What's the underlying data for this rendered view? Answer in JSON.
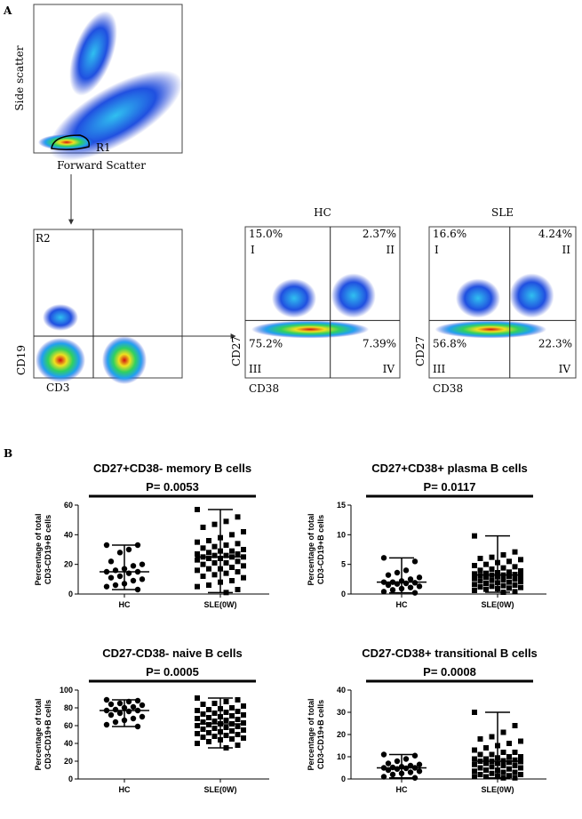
{
  "figure": {
    "panel_a": "A",
    "panel_b": "B",
    "scatter_plot": {
      "y_label": "Side scatter",
      "x_label": "Forward Scatter",
      "gate": "R1"
    },
    "gate_plot": {
      "gate": "R2",
      "y_label": "CD19",
      "x_label": "CD3"
    },
    "quadrant_plots": [
      {
        "title": "HC",
        "quadrants": [
          "15.0%",
          "2.37%",
          "75.2%",
          "7.39%"
        ],
        "labels": [
          "I",
          "II",
          "III",
          "IV"
        ],
        "y_label": "CD27",
        "x_label": "CD38"
      },
      {
        "title": "SLE",
        "quadrants": [
          "16.6%",
          "4.24%",
          "56.8%",
          "22.3%"
        ],
        "labels": [
          "I",
          "II",
          "III",
          "IV"
        ],
        "y_label": "CD27",
        "x_label": "CD38"
      }
    ]
  },
  "chart_data": [
    {
      "type": "dot",
      "title": "CD27+CD38- memory B cells",
      "annotation": "P= 0.0053",
      "ylabel": [
        "Percentage of total",
        "CD3-CD19+B cells"
      ],
      "categories": [
        "HC",
        "SLE(0W)"
      ],
      "ylim": [
        0,
        60
      ],
      "yticks": [
        0,
        20,
        40,
        60
      ],
      "groups": [
        {
          "marker": "circle",
          "median": 15,
          "values": [
            33,
            33,
            30,
            28,
            22,
            20,
            19,
            17,
            16,
            15,
            15,
            14,
            12,
            11,
            10,
            9,
            7,
            6,
            5,
            3
          ]
        },
        {
          "marker": "square",
          "median": 25,
          "values": [
            57,
            52,
            49,
            47,
            45,
            42,
            40,
            38,
            36,
            35,
            34,
            33,
            32,
            31,
            30,
            29,
            29,
            28,
            27,
            27,
            26,
            26,
            25,
            25,
            25,
            24,
            24,
            23,
            22,
            21,
            21,
            20,
            19,
            18,
            17,
            17,
            16,
            15,
            14,
            13,
            12,
            11,
            9,
            8,
            6,
            5,
            3,
            1
          ]
        }
      ]
    },
    {
      "type": "dot",
      "title": "CD27+CD38+ plasma B cells",
      "annotation": "P= 0.0117",
      "ylabel": [
        "Percentage of total",
        "CD3-CD19+B cells"
      ],
      "categories": [
        "HC",
        "SLE(0W)"
      ],
      "ylim": [
        0,
        15
      ],
      "yticks": [
        0,
        5,
        10,
        15
      ],
      "groups": [
        {
          "marker": "circle",
          "median": 2,
          "values": [
            6.1,
            5.5,
            4,
            3.6,
            3.2,
            2.8,
            2.5,
            2.2,
            2,
            2,
            1.9,
            1.8,
            1.7,
            1.5,
            1.3,
            1.1,
            0.9,
            0.7,
            0.4,
            0.2
          ]
        },
        {
          "marker": "square",
          "median": 3.2,
          "values": [
            9.8,
            7.1,
            6.6,
            6.2,
            6,
            5.8,
            5.5,
            5.3,
            5,
            4.8,
            4.6,
            4.4,
            4.2,
            4,
            3.9,
            3.7,
            3.6,
            3.5,
            3.4,
            3.3,
            3.2,
            3.2,
            3.1,
            3,
            3,
            2.9,
            2.8,
            2.6,
            2.5,
            2.4,
            2.3,
            2.2,
            2.1,
            2,
            1.9,
            1.8,
            1.6,
            1.5,
            1.4,
            1.3,
            1.2,
            1.1,
            1,
            0.9,
            0.8,
            0.6,
            0.4,
            0.3
          ]
        }
      ]
    },
    {
      "type": "dot",
      "title": "CD27-CD38- naive B cells",
      "annotation": "P= 0.0005",
      "ylabel": [
        "Percentage of total",
        "CD3-CD19+B cells"
      ],
      "categories": [
        "HC",
        "SLE(0W)"
      ],
      "ylim": [
        0,
        100
      ],
      "yticks": [
        0,
        20,
        40,
        60,
        80,
        100
      ],
      "groups": [
        {
          "marker": "circle",
          "median": 77,
          "values": [
            89,
            88,
            87,
            85,
            84,
            83,
            81,
            80,
            78,
            77,
            77,
            76,
            74,
            72,
            70,
            68,
            66,
            64,
            61,
            59
          ]
        },
        {
          "marker": "square",
          "median": 62,
          "values": [
            91,
            89,
            87,
            85,
            84,
            82,
            80,
            79,
            78,
            77,
            76,
            75,
            74,
            73,
            72,
            71,
            70,
            69,
            68,
            67,
            66,
            65,
            64,
            63,
            62,
            62,
            61,
            60,
            59,
            58,
            57,
            56,
            55,
            54,
            53,
            52,
            51,
            50,
            49,
            48,
            47,
            46,
            45,
            44,
            42,
            40,
            38,
            35
          ]
        }
      ]
    },
    {
      "type": "dot",
      "title": "CD27-CD38+ transitional B cells",
      "annotation": "P= 0.0008",
      "ylabel": [
        "Percentage of total",
        "CD3-CD19+B cells"
      ],
      "categories": [
        "HC",
        "SLE(0W)"
      ],
      "ylim": [
        0,
        40
      ],
      "yticks": [
        0,
        10,
        20,
        30,
        40
      ],
      "groups": [
        {
          "marker": "circle",
          "median": 5,
          "values": [
            11,
            10.5,
            9,
            8,
            7,
            6.5,
            6,
            5.5,
            5.2,
            5,
            5,
            4.8,
            4.5,
            4,
            3.5,
            3,
            2.5,
            2,
            1,
            0.5
          ]
        },
        {
          "marker": "square",
          "median": 8,
          "values": [
            30,
            24,
            21,
            19,
            18,
            17,
            16,
            15,
            14,
            13,
            12,
            12,
            11,
            11,
            10,
            10,
            9.5,
            9,
            9,
            8.5,
            8.2,
            8,
            8,
            7.8,
            7.5,
            7,
            7,
            6.5,
            6,
            6,
            5.5,
            5,
            5,
            4.5,
            4,
            4,
            3.5,
            3,
            3,
            2.5,
            2,
            2,
            1.5,
            1.5,
            1,
            1,
            0.5,
            0.5
          ]
        }
      ]
    }
  ]
}
